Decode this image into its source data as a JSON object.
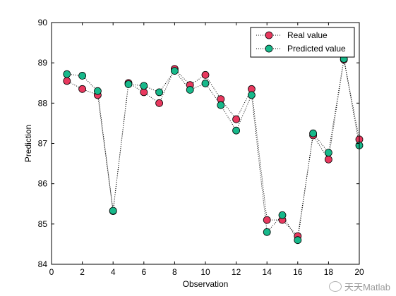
{
  "chart_data": {
    "type": "line",
    "title": "",
    "xlabel": "Observation",
    "ylabel": "Prediction",
    "xlim": [
      0,
      20
    ],
    "ylim": [
      84,
      90
    ],
    "xticks": [
      0,
      2,
      4,
      6,
      8,
      10,
      12,
      14,
      16,
      18,
      20
    ],
    "yticks": [
      84,
      85,
      86,
      87,
      88,
      89,
      90
    ],
    "grid": false,
    "legend_position": "top-right",
    "x": [
      1,
      2,
      3,
      4,
      5,
      6,
      7,
      8,
      9,
      10,
      11,
      12,
      13,
      14,
      15,
      16,
      17,
      18,
      19,
      20
    ],
    "series": [
      {
        "name": "Real value",
        "color": "#e8385e",
        "marker": "circle",
        "line_style": "dotted",
        "values": [
          88.55,
          88.35,
          88.2,
          85.32,
          88.5,
          88.27,
          88.0,
          88.85,
          88.45,
          88.7,
          88.1,
          87.6,
          88.35,
          85.1,
          85.1,
          84.7,
          87.2,
          86.6,
          89.08,
          87.1
        ]
      },
      {
        "name": "Predicted value",
        "color": "#17b88a",
        "marker": "circle",
        "line_style": "dotted",
        "values": [
          88.72,
          88.68,
          88.3,
          85.33,
          88.47,
          88.43,
          88.27,
          88.8,
          88.33,
          88.49,
          87.95,
          87.32,
          88.2,
          84.8,
          85.22,
          84.6,
          87.25,
          86.77,
          89.1,
          86.95
        ]
      }
    ]
  },
  "watermark": {
    "icon": "wechat-icon",
    "text": "天天Matlab"
  }
}
